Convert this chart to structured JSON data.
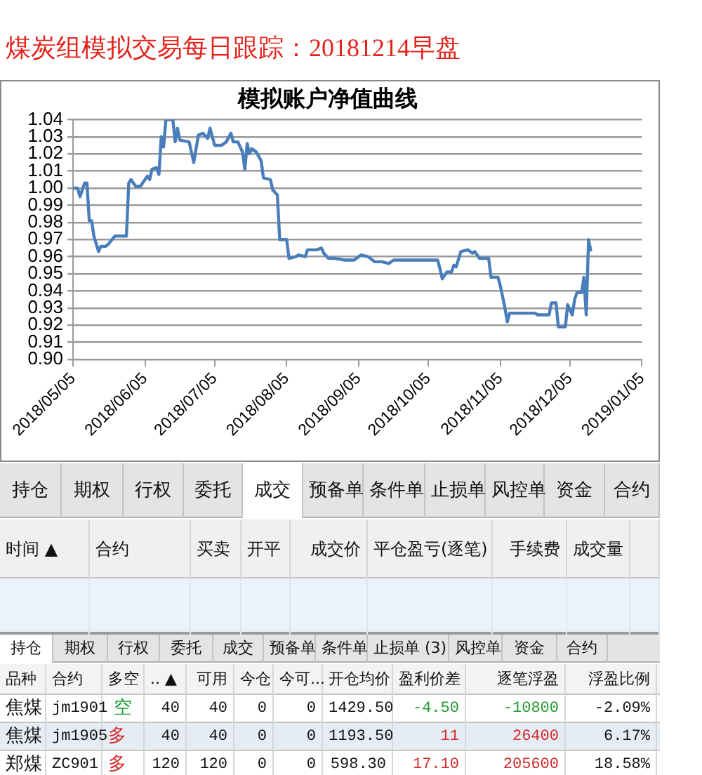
{
  "chart_data": [
    {
      "type": "line",
      "title": "煤炭组模拟交易每日跟踪：20181214早盘",
      "subtitle": "模拟账户净值曲线",
      "x": [
        "2018-05-05",
        "2018-05-07",
        "2018-05-08",
        "2018-05-09",
        "2018-05-10",
        "2018-05-11",
        "2018-05-12",
        "2018-05-13",
        "2018-05-14",
        "2018-05-16",
        "2018-05-17",
        "2018-05-19",
        "2018-05-20",
        "2018-05-23",
        "2018-05-28",
        "2018-05-29",
        "2018-05-30",
        "2018-05-31",
        "2018-06-01",
        "2018-06-03",
        "2018-06-05",
        "2018-06-06",
        "2018-06-07",
        "2018-06-08",
        "2018-06-10",
        "2018-06-11",
        "2018-06-12",
        "2018-06-13",
        "2018-06-14",
        "2018-06-17",
        "2018-06-18",
        "2018-06-19",
        "2018-06-20",
        "2018-06-24",
        "2018-06-26",
        "2018-06-28",
        "2018-06-30",
        "2018-07-02",
        "2018-07-03",
        "2018-07-05",
        "2018-07-08",
        "2018-07-10",
        "2018-07-12",
        "2018-07-13",
        "2018-07-15",
        "2018-07-16",
        "2018-07-17",
        "2018-07-18",
        "2018-07-19",
        "2018-07-20",
        "2018-07-21",
        "2018-07-23",
        "2018-07-25",
        "2018-07-26",
        "2018-07-29",
        "2018-07-30",
        "2018-08-01",
        "2018-08-02",
        "2018-08-05",
        "2018-08-06",
        "2018-08-09",
        "2018-08-10",
        "2018-08-13",
        "2018-08-14",
        "2018-08-18",
        "2018-08-20",
        "2018-08-21",
        "2018-08-23",
        "2018-08-26",
        "2018-08-30",
        "2018-09-03",
        "2018-09-06",
        "2018-09-09",
        "2018-09-12",
        "2018-09-15",
        "2018-09-18",
        "2018-09-20",
        "2018-10-09",
        "2018-10-10",
        "2018-10-11",
        "2018-10-13",
        "2018-10-15",
        "2018-10-16",
        "2018-10-17",
        "2018-10-19",
        "2018-10-22",
        "2018-10-24",
        "2018-10-25",
        "2018-10-27",
        "2018-10-31",
        "2018-11-01",
        "2018-11-04",
        "2018-11-05",
        "2018-11-07",
        "2018-11-08",
        "2018-11-09",
        "2018-11-20",
        "2018-11-21",
        "2018-11-26",
        "2018-11-27",
        "2018-11-29",
        "2018-11-30",
        "2018-12-03",
        "2018-12-04",
        "2018-12-05",
        "2018-12-06",
        "2018-12-07",
        "2018-12-08",
        "2018-12-10",
        "2018-12-11",
        "2018-12-12",
        "2018-12-13",
        "2018-12-14"
      ],
      "values": [
        1.0,
        1.0,
        0.995,
        0.999,
        1.003,
        1.003,
        0.981,
        0.981,
        0.972,
        0.963,
        0.966,
        0.966,
        0.967,
        0.972,
        0.972,
        1.003,
        1.005,
        1.003,
        1.001,
        1.001,
        1.005,
        1.007,
        1.005,
        1.011,
        1.012,
        1.008,
        1.03,
        1.024,
        1.04,
        1.04,
        1.027,
        1.035,
        1.028,
        1.027,
        1.015,
        1.031,
        1.032,
        1.029,
        1.035,
        1.025,
        1.025,
        1.027,
        1.032,
        1.027,
        1.027,
        1.024,
        1.021,
        1.011,
        1.026,
        1.02,
        1.023,
        1.021,
        1.016,
        1.006,
        1.005,
        0.999,
        0.996,
        0.97,
        0.97,
        0.959,
        0.96,
        0.961,
        0.96,
        0.964,
        0.964,
        0.965,
        0.962,
        0.959,
        0.959,
        0.958,
        0.958,
        0.961,
        0.96,
        0.957,
        0.957,
        0.956,
        0.958,
        0.958,
        0.953,
        0.947,
        0.951,
        0.951,
        0.955,
        0.954,
        0.963,
        0.964,
        0.962,
        0.963,
        0.959,
        0.959,
        0.948,
        0.948,
        0.943,
        0.93,
        0.922,
        0.927,
        0.927,
        0.926,
        0.926,
        0.933,
        0.933,
        0.919,
        0.919,
        0.932,
        0.929,
        0.926,
        0.935,
        0.939,
        0.939,
        0.948,
        0.926,
        0.97,
        0.963
      ],
      "color": "#4a7ebb",
      "xlim": [
        "2018-05-05",
        "2019-01-05"
      ],
      "xticks": [
        {
          "value": "2018-05-05",
          "label": "2018/05/05"
        },
        {
          "value": "2018-06-05",
          "label": "2018/06/05"
        },
        {
          "value": "2018-07-05",
          "label": "2018/07/05"
        },
        {
          "value": "2018-08-05",
          "label": "2018/08/05"
        },
        {
          "value": "2018-09-05",
          "label": "2018/09/05"
        },
        {
          "value": "2018-10-05",
          "label": "2018/10/05"
        },
        {
          "value": "2018-11-05",
          "label": "2018/11/05"
        },
        {
          "value": "2018-12-05",
          "label": "2018/12/05"
        },
        {
          "value": "2019-01-05",
          "label": "2019/01/05"
        }
      ],
      "ylim": [
        0.9,
        1.04
      ],
      "yticks": [
        {
          "value": 0.9,
          "label": "0.90"
        },
        {
          "value": 0.91,
          "label": "0.91"
        },
        {
          "value": 0.92,
          "label": "0.92"
        },
        {
          "value": 0.93,
          "label": "0.93"
        },
        {
          "value": 0.94,
          "label": "0.94"
        },
        {
          "value": 0.95,
          "label": "0.95"
        },
        {
          "value": 0.96,
          "label": "0.96"
        },
        {
          "value": 0.97,
          "label": "0.97"
        },
        {
          "value": 0.98,
          "label": "0.98"
        },
        {
          "value": 0.99,
          "label": "0.99"
        },
        {
          "value": 1.0,
          "label": "1.00"
        },
        {
          "value": 1.01,
          "label": "1.01"
        },
        {
          "value": 1.02,
          "label": "1.02"
        },
        {
          "value": 1.03,
          "label": "1.03"
        },
        {
          "value": 1.04,
          "label": "1.04"
        }
      ],
      "grid": "y"
    },
    {
      "type": "other",
      "annotations": [
        "持仓",
        "期权",
        "行权",
        "委托",
        "成交",
        "预备单",
        "条件单",
        "止损单",
        "风控单",
        "资金",
        "合约",
        "时间 ▲",
        "合约",
        "买卖",
        "开平",
        "成交价",
        "平仓盈亏(逐笔)",
        "手续费",
        "成交量",
        "持仓",
        "期权",
        "行权",
        "委托",
        "成交",
        "预备单",
        "条件单",
        "止损单 (3)",
        "风控单",
        "资金",
        "合约",
        "品种",
        "合约",
        "多空",
        ".. ▲",
        "可用",
        "今仓",
        "今可...",
        "开仓均价",
        "盈利价差",
        "逐笔浮盈",
        "浮盈比例",
        "焦煤",
        "jm1901",
        "空",
        "40",
        "40",
        "0",
        "0",
        "1429.50",
        "-4.50",
        "-10800",
        "-2.09%",
        "焦煤",
        "jm1905",
        "多",
        "40",
        "40",
        "0",
        "0",
        "1193.50",
        "11",
        "26400",
        "6.17%",
        "郑煤",
        "ZC901",
        "多",
        "120",
        "120",
        "0",
        "0",
        "598.30",
        "17.10",
        "205600",
        "18.58%"
      ]
    }
  ]
}
